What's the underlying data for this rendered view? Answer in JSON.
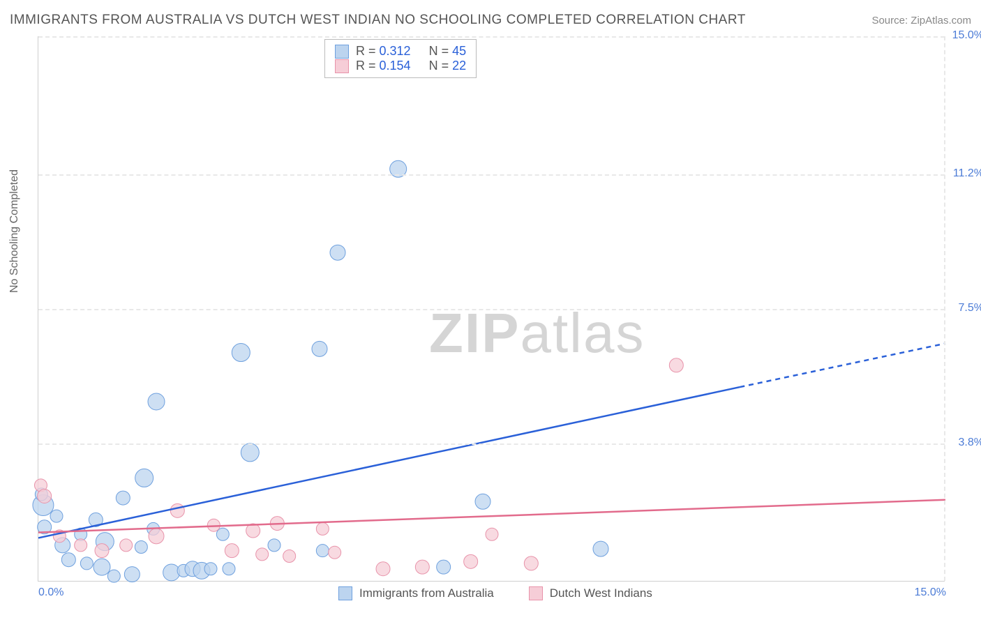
{
  "title": "IMMIGRANTS FROM AUSTRALIA VS DUTCH WEST INDIAN NO SCHOOLING COMPLETED CORRELATION CHART",
  "source": "Source: ZipAtlas.com",
  "ylabel": "No Schooling Completed",
  "watermark": "ZIPatlas",
  "chart": {
    "type": "scatter-with-regression",
    "xlim": [
      0,
      15
    ],
    "ylim": [
      0,
      15
    ],
    "x_ticks": [
      "0.0%",
      "15.0%"
    ],
    "y_ticks": [
      {
        "v": 15.0,
        "label": "15.0%"
      },
      {
        "v": 11.2,
        "label": "11.2%"
      },
      {
        "v": 7.5,
        "label": "7.5%"
      },
      {
        "v": 3.8,
        "label": "3.8%"
      }
    ],
    "y_grid_at": [
      15.0,
      11.2,
      7.5,
      3.8,
      0.0
    ],
    "x_grid_at": [
      15.0
    ],
    "background": "#ffffff",
    "grid_color": "#e8e8e8",
    "axis_color": "#cfcfcf",
    "series": [
      {
        "name": "Immigrants from Australia",
        "color_fill": "#bcd4ef",
        "color_stroke": "#6ea0de",
        "marker": "circle",
        "marker_radius": 11,
        "marker_opacity": 0.75,
        "r": 0.312,
        "n": 45,
        "regression": {
          "color": "#2a60d8",
          "width": 2.5,
          "y0": 1.2,
          "solid_end_x": 11.6,
          "solid_end_y": 5.35,
          "dash_end_x": 15.0,
          "dash_end_y": 6.55
        },
        "points": [
          {
            "x": 0.08,
            "y": 2.1,
            "r": 15
          },
          {
            "x": 0.05,
            "y": 2.4,
            "r": 9
          },
          {
            "x": 0.1,
            "y": 1.5,
            "r": 10
          },
          {
            "x": 0.3,
            "y": 1.8,
            "r": 9
          },
          {
            "x": 0.4,
            "y": 1.0,
            "r": 11
          },
          {
            "x": 0.5,
            "y": 0.6,
            "r": 10
          },
          {
            "x": 0.7,
            "y": 1.3,
            "r": 9
          },
          {
            "x": 0.8,
            "y": 0.5,
            "r": 9
          },
          {
            "x": 0.95,
            "y": 1.7,
            "r": 10
          },
          {
            "x": 1.05,
            "y": 0.4,
            "r": 12
          },
          {
            "x": 1.1,
            "y": 1.1,
            "r": 13
          },
          {
            "x": 1.25,
            "y": 0.15,
            "r": 9
          },
          {
            "x": 1.4,
            "y": 2.3,
            "r": 10
          },
          {
            "x": 1.55,
            "y": 0.2,
            "r": 11
          },
          {
            "x": 1.7,
            "y": 0.95,
            "r": 9
          },
          {
            "x": 1.75,
            "y": 2.85,
            "r": 13
          },
          {
            "x": 1.9,
            "y": 1.45,
            "r": 9
          },
          {
            "x": 1.95,
            "y": 4.95,
            "r": 12
          },
          {
            "x": 2.2,
            "y": 0.25,
            "r": 12
          },
          {
            "x": 2.4,
            "y": 0.3,
            "r": 9
          },
          {
            "x": 2.55,
            "y": 0.35,
            "r": 11
          },
          {
            "x": 2.7,
            "y": 0.3,
            "r": 12
          },
          {
            "x": 2.85,
            "y": 0.35,
            "r": 9
          },
          {
            "x": 3.05,
            "y": 1.3,
            "r": 9
          },
          {
            "x": 3.15,
            "y": 0.35,
            "r": 9
          },
          {
            "x": 3.35,
            "y": 6.3,
            "r": 13
          },
          {
            "x": 3.5,
            "y": 3.55,
            "r": 13
          },
          {
            "x": 3.9,
            "y": 1.0,
            "r": 9
          },
          {
            "x": 4.65,
            "y": 6.4,
            "r": 11
          },
          {
            "x": 4.7,
            "y": 0.85,
            "r": 9
          },
          {
            "x": 4.95,
            "y": 9.05,
            "r": 11
          },
          {
            "x": 5.95,
            "y": 11.35,
            "r": 12
          },
          {
            "x": 6.7,
            "y": 0.4,
            "r": 10
          },
          {
            "x": 7.35,
            "y": 2.2,
            "r": 11
          },
          {
            "x": 9.3,
            "y": 0.9,
            "r": 11
          }
        ]
      },
      {
        "name": "Dutch West Indians",
        "color_fill": "#f6cdd7",
        "color_stroke": "#e893aa",
        "marker": "circle",
        "marker_radius": 11,
        "marker_opacity": 0.75,
        "r": 0.154,
        "n": 22,
        "regression": {
          "color": "#e26b8c",
          "width": 2.5,
          "y0": 1.35,
          "solid_end_x": 15.0,
          "solid_end_y": 2.25,
          "dash_end_x": 15.0,
          "dash_end_y": 2.25
        },
        "points": [
          {
            "x": 0.04,
            "y": 2.65,
            "r": 9
          },
          {
            "x": 0.1,
            "y": 2.35,
            "r": 10
          },
          {
            "x": 0.35,
            "y": 1.25,
            "r": 9
          },
          {
            "x": 0.7,
            "y": 1.0,
            "r": 9
          },
          {
            "x": 1.05,
            "y": 0.85,
            "r": 10
          },
          {
            "x": 1.45,
            "y": 1.0,
            "r": 9
          },
          {
            "x": 1.95,
            "y": 1.25,
            "r": 11
          },
          {
            "x": 2.3,
            "y": 1.95,
            "r": 10
          },
          {
            "x": 2.9,
            "y": 1.55,
            "r": 9
          },
          {
            "x": 3.2,
            "y": 0.85,
            "r": 10
          },
          {
            "x": 3.55,
            "y": 1.4,
            "r": 10
          },
          {
            "x": 3.7,
            "y": 0.75,
            "r": 9
          },
          {
            "x": 3.95,
            "y": 1.6,
            "r": 10
          },
          {
            "x": 4.15,
            "y": 0.7,
            "r": 9
          },
          {
            "x": 4.7,
            "y": 1.45,
            "r": 9
          },
          {
            "x": 4.9,
            "y": 0.8,
            "r": 9
          },
          {
            "x": 5.7,
            "y": 0.35,
            "r": 10
          },
          {
            "x": 6.35,
            "y": 0.4,
            "r": 10
          },
          {
            "x": 7.15,
            "y": 0.55,
            "r": 10
          },
          {
            "x": 7.5,
            "y": 1.3,
            "r": 9
          },
          {
            "x": 8.15,
            "y": 0.5,
            "r": 10
          },
          {
            "x": 10.55,
            "y": 5.95,
            "r": 10
          }
        ]
      }
    ]
  },
  "stats_box": [
    {
      "swatch": "blue",
      "r": "0.312",
      "n": "45"
    },
    {
      "swatch": "pink",
      "r": "0.154",
      "n": "22"
    }
  ],
  "bottom_legend": [
    {
      "swatch": "blue",
      "label": "Immigrants from Australia"
    },
    {
      "swatch": "pink",
      "label": "Dutch West Indians"
    }
  ]
}
